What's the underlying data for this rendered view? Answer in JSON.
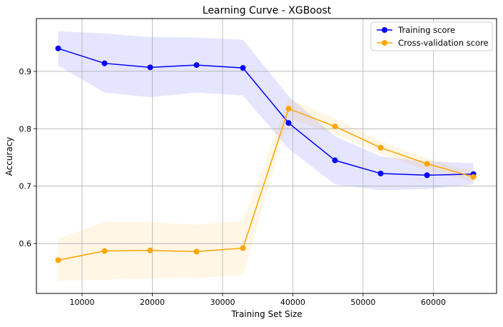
{
  "chart_data": {
    "type": "line",
    "title": "Learning Curve - XGBoost",
    "xlabel": "Training Set Size",
    "ylabel": "Accuracy",
    "xlim": [
      3500,
      69000
    ],
    "ylim": [
      0.513,
      0.992
    ],
    "xticks": [
      10000,
      20000,
      30000,
      40000,
      50000,
      60000
    ],
    "yticks": [
      0.6,
      0.7,
      0.8,
      0.9
    ],
    "xtick_labels": [
      "10000",
      "20000",
      "30000",
      "40000",
      "50000",
      "60000"
    ],
    "ytick_labels": [
      "0.6",
      "0.7",
      "0.8",
      "0.9"
    ],
    "grid": true,
    "legend_position": "top-right",
    "x": [
      6600,
      13200,
      19700,
      26300,
      32900,
      39400,
      46000,
      52500,
      59100,
      65700
    ],
    "series": [
      {
        "name": "Training score",
        "color": "#0000ff",
        "band_color": "#0000ff",
        "values": [
          0.94,
          0.914,
          0.907,
          0.911,
          0.906,
          0.81,
          0.745,
          0.722,
          0.719,
          0.721
        ],
        "lower": [
          0.91,
          0.863,
          0.855,
          0.863,
          0.858,
          0.765,
          0.703,
          0.693,
          0.695,
          0.703
        ],
        "upper": [
          0.97,
          0.966,
          0.96,
          0.959,
          0.955,
          0.857,
          0.787,
          0.752,
          0.743,
          0.74
        ]
      },
      {
        "name": "Cross-validation score",
        "color": "#ffa500",
        "band_color": "#ffa500",
        "values": [
          0.571,
          0.587,
          0.588,
          0.586,
          0.592,
          0.835,
          0.804,
          0.767,
          0.739,
          0.716
        ],
        "lower": [
          0.535,
          0.537,
          0.539,
          0.54,
          0.545,
          0.818,
          0.79,
          0.756,
          0.728,
          0.707
        ],
        "upper": [
          0.608,
          0.638,
          0.637,
          0.633,
          0.64,
          0.852,
          0.818,
          0.778,
          0.749,
          0.725
        ]
      }
    ]
  }
}
